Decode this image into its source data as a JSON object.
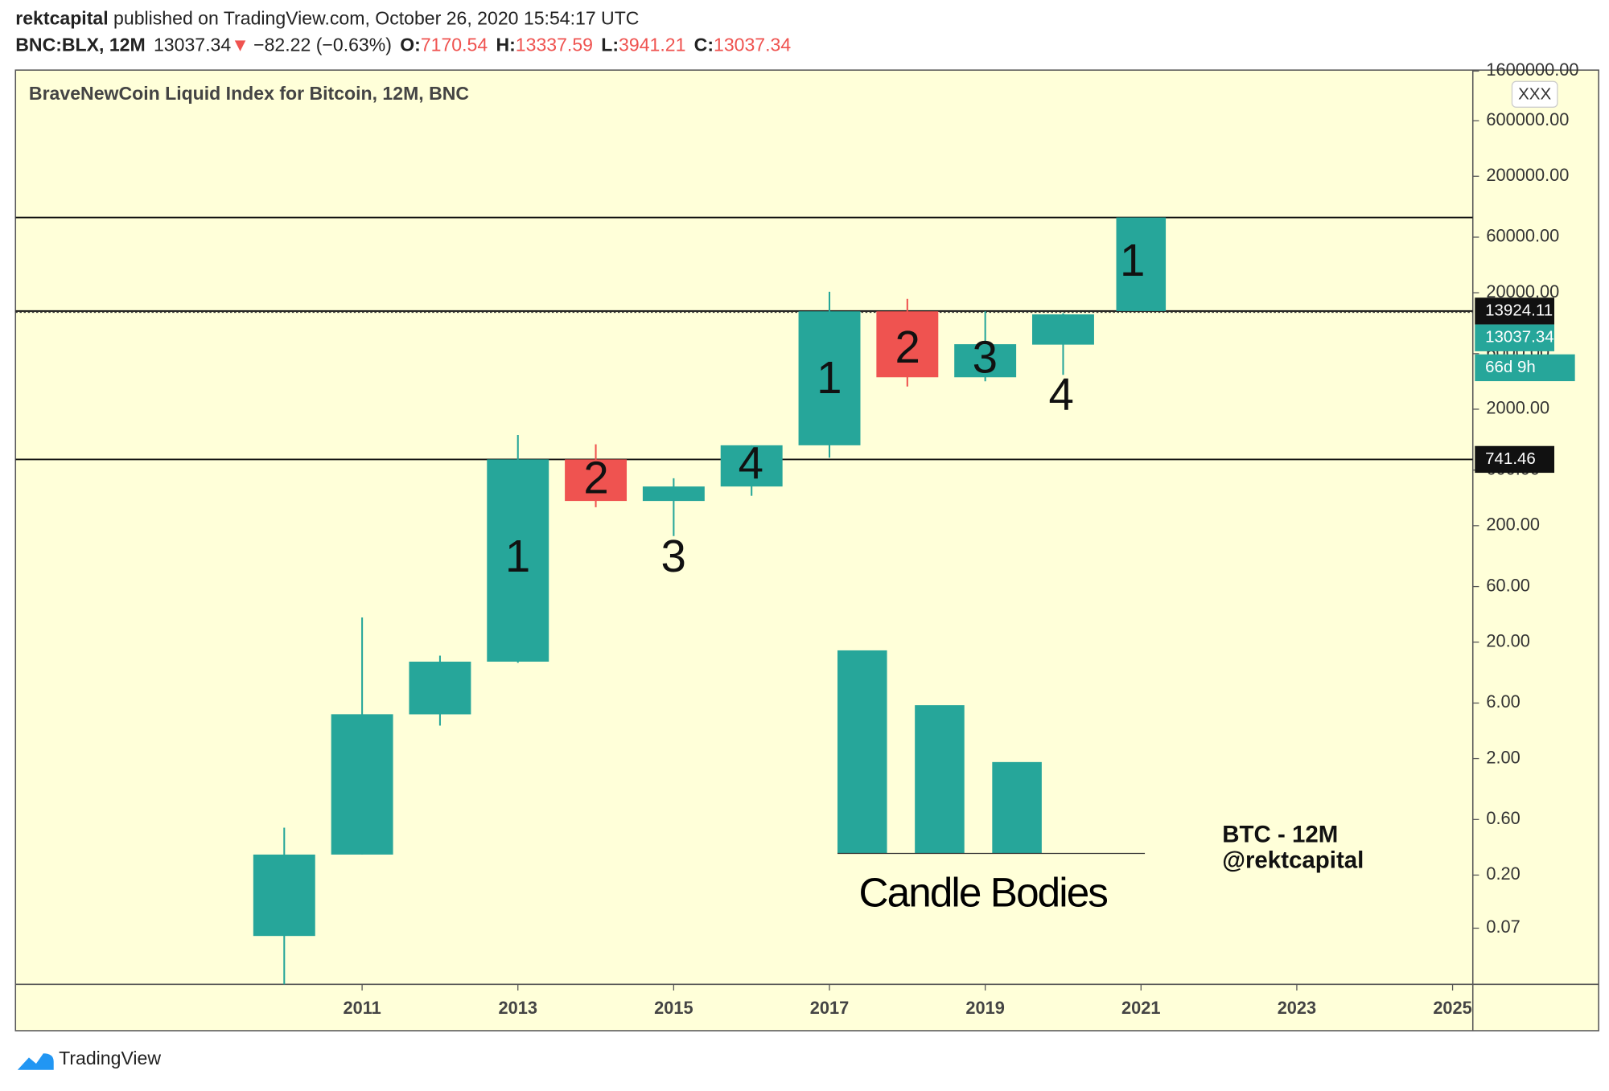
{
  "header": {
    "author": "rektcapital",
    "published": "published on TradingView.com, October 26, 2020 15:54:17 UTC",
    "symbol": "BNC:BLX, 12M",
    "arrow": "▼",
    "change": "−82.22 (−0.63%)",
    "o_label": "O:",
    "h_label": "H:",
    "l_label": "L:",
    "c_label": "C:"
  },
  "chart_data": {
    "type": "candlestick",
    "legend": "BraveNewCoin Liquid Index for Bitcoin, 12M, BNC",
    "log_scale": true,
    "x": [
      2010,
      2011,
      2012,
      2013,
      2014,
      2015,
      2016,
      2017,
      2018,
      2019,
      2020
    ],
    "open": [
      0.06,
      0.3,
      4.8,
      13.6,
      741.46,
      326,
      434,
      980,
      13850,
      3760,
      7170.54
    ],
    "high": [
      0.51,
      32.6,
      15.3,
      1202,
      1000,
      511,
      980,
      20400,
      17700,
      13870,
      13337.59
    ],
    "low": [
      0.01,
      0.3,
      3.84,
      13.3,
      288,
      163,
      361,
      768,
      3130,
      3470,
      3941.21
    ],
    "close": [
      0.3,
      4.81,
      13.6,
      741.46,
      326,
      434,
      980,
      13850,
      3760,
      7230,
      13037.34
    ],
    "up_color": "#26a69a",
    "down_color": "#ef5350",
    "xlim": [
      2006.55,
      2025.26
    ],
    "xticks": [
      2011,
      2013,
      2015,
      2017,
      2019,
      2021,
      2023,
      2025
    ],
    "ylim": [
      0.02307,
      1632000
    ],
    "yticks": [
      {
        "value": 1600000,
        "label": "1600000.00"
      },
      {
        "value": 600000,
        "label": "600000.00"
      },
      {
        "value": 200000,
        "label": "200000.00"
      },
      {
        "value": 60000,
        "label": "60000.00"
      },
      {
        "value": 20000,
        "label": "20000.00"
      },
      {
        "value": 6000,
        "label": "6000.00"
      },
      {
        "value": 2000,
        "label": "2000.00"
      },
      {
        "value": 600,
        "label": "600.00"
      },
      {
        "value": 200,
        "label": "200.00"
      },
      {
        "value": 60,
        "label": "60.00"
      },
      {
        "value": 20,
        "label": "20.00"
      },
      {
        "value": 6,
        "label": "6.00"
      },
      {
        "value": 2,
        "label": "2.00"
      },
      {
        "value": 0.6,
        "label": "0.60"
      },
      {
        "value": 0.2,
        "label": "0.20"
      },
      {
        "value": 0.07,
        "label": "0.07"
      }
    ],
    "hlines": [
      88500,
      13924.11,
      741.46
    ],
    "projection": {
      "x": 2021,
      "low": 13924.11,
      "high": 88500
    },
    "countdown": "66d 9h",
    "annotations": [
      "1",
      "2",
      "3",
      "4",
      "1",
      "2",
      "3",
      "4",
      "1"
    ],
    "inset": {
      "title": "Candle Bodies",
      "values": [
        100,
        73,
        45
      ],
      "ylim": [
        0,
        100
      ]
    },
    "watermark": [
      "BTC - 12M",
      "@rektcapital"
    ],
    "button": "XXX"
  },
  "footer": {
    "brand": "TradingView"
  }
}
